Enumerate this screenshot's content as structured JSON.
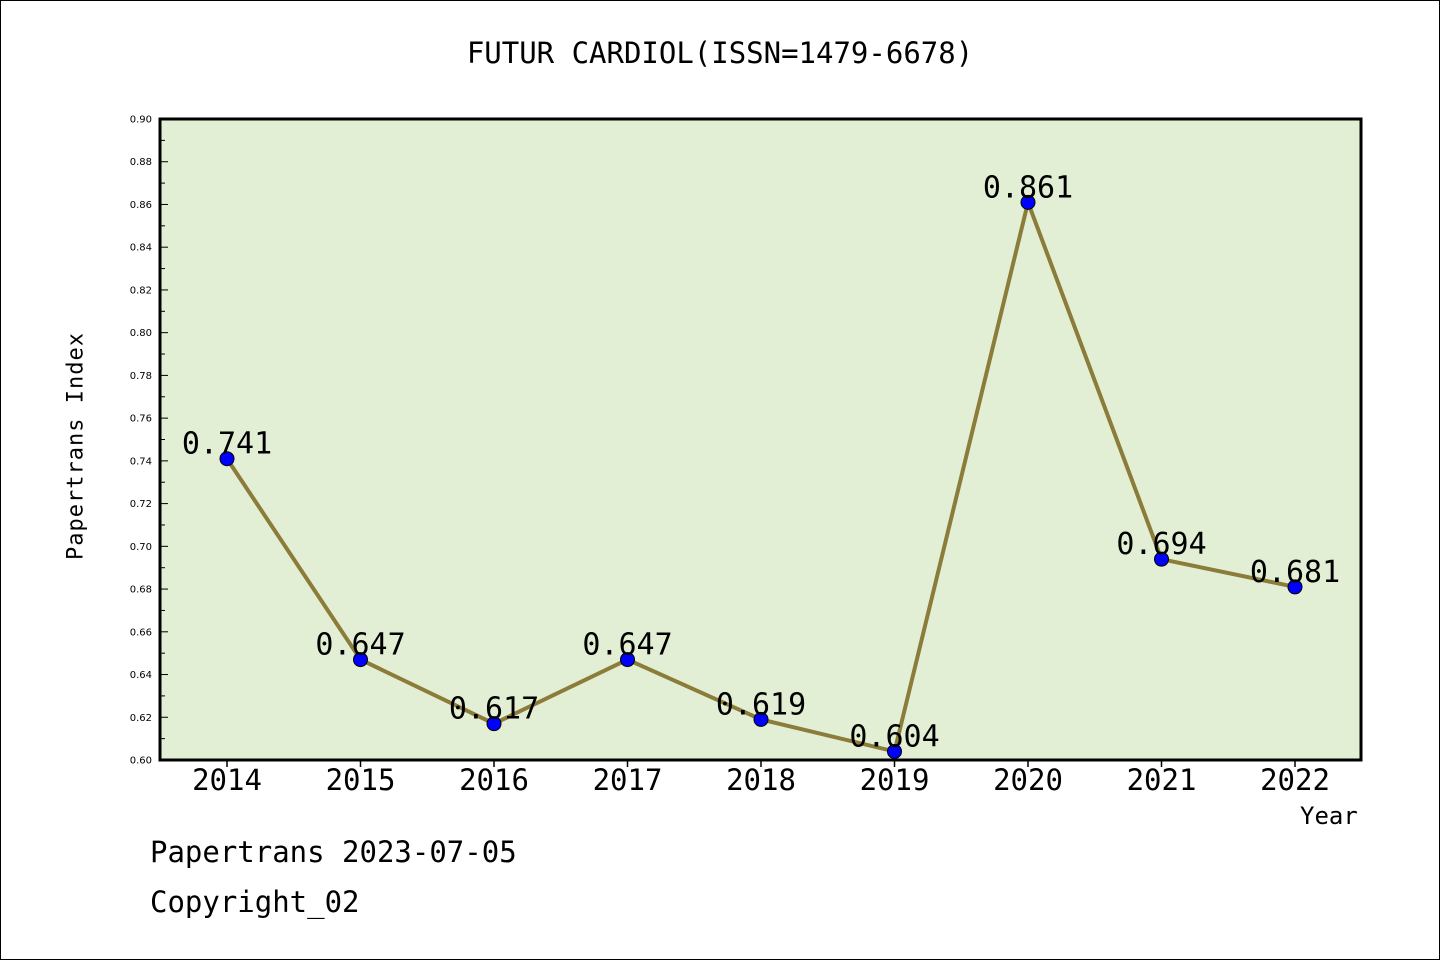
{
  "chart_data": {
    "type": "line",
    "title": "FUTUR CARDIOL(ISSN=1479-6678)",
    "xlabel": "Year",
    "ylabel": "Papertrans Index",
    "categories": [
      "2014",
      "2015",
      "2016",
      "2017",
      "2018",
      "2019",
      "2020",
      "2021",
      "2022"
    ],
    "values": [
      0.741,
      0.647,
      0.617,
      0.647,
      0.619,
      0.604,
      0.861,
      0.694,
      0.681
    ],
    "data_labels": [
      "0.741",
      "0.647",
      "0.617",
      "0.647",
      "0.619",
      "0.604",
      "0.861",
      "0.694",
      "0.681"
    ],
    "ylim": [
      0.6,
      0.9
    ],
    "y_ticks": [
      "0.60",
      "0.62",
      "0.64",
      "0.66",
      "0.68",
      "0.70",
      "0.72",
      "0.74",
      "0.76",
      "0.78",
      "0.80",
      "0.82",
      "0.84",
      "0.86",
      "0.88",
      "0.90"
    ],
    "grid": false,
    "colors": {
      "plot_bg": "#e2efd5",
      "line": "#8b7c3a",
      "marker": "#0000ff"
    }
  },
  "footer": {
    "date": "Papertrans 2023-07-05",
    "copyright": "Copyright_02"
  }
}
